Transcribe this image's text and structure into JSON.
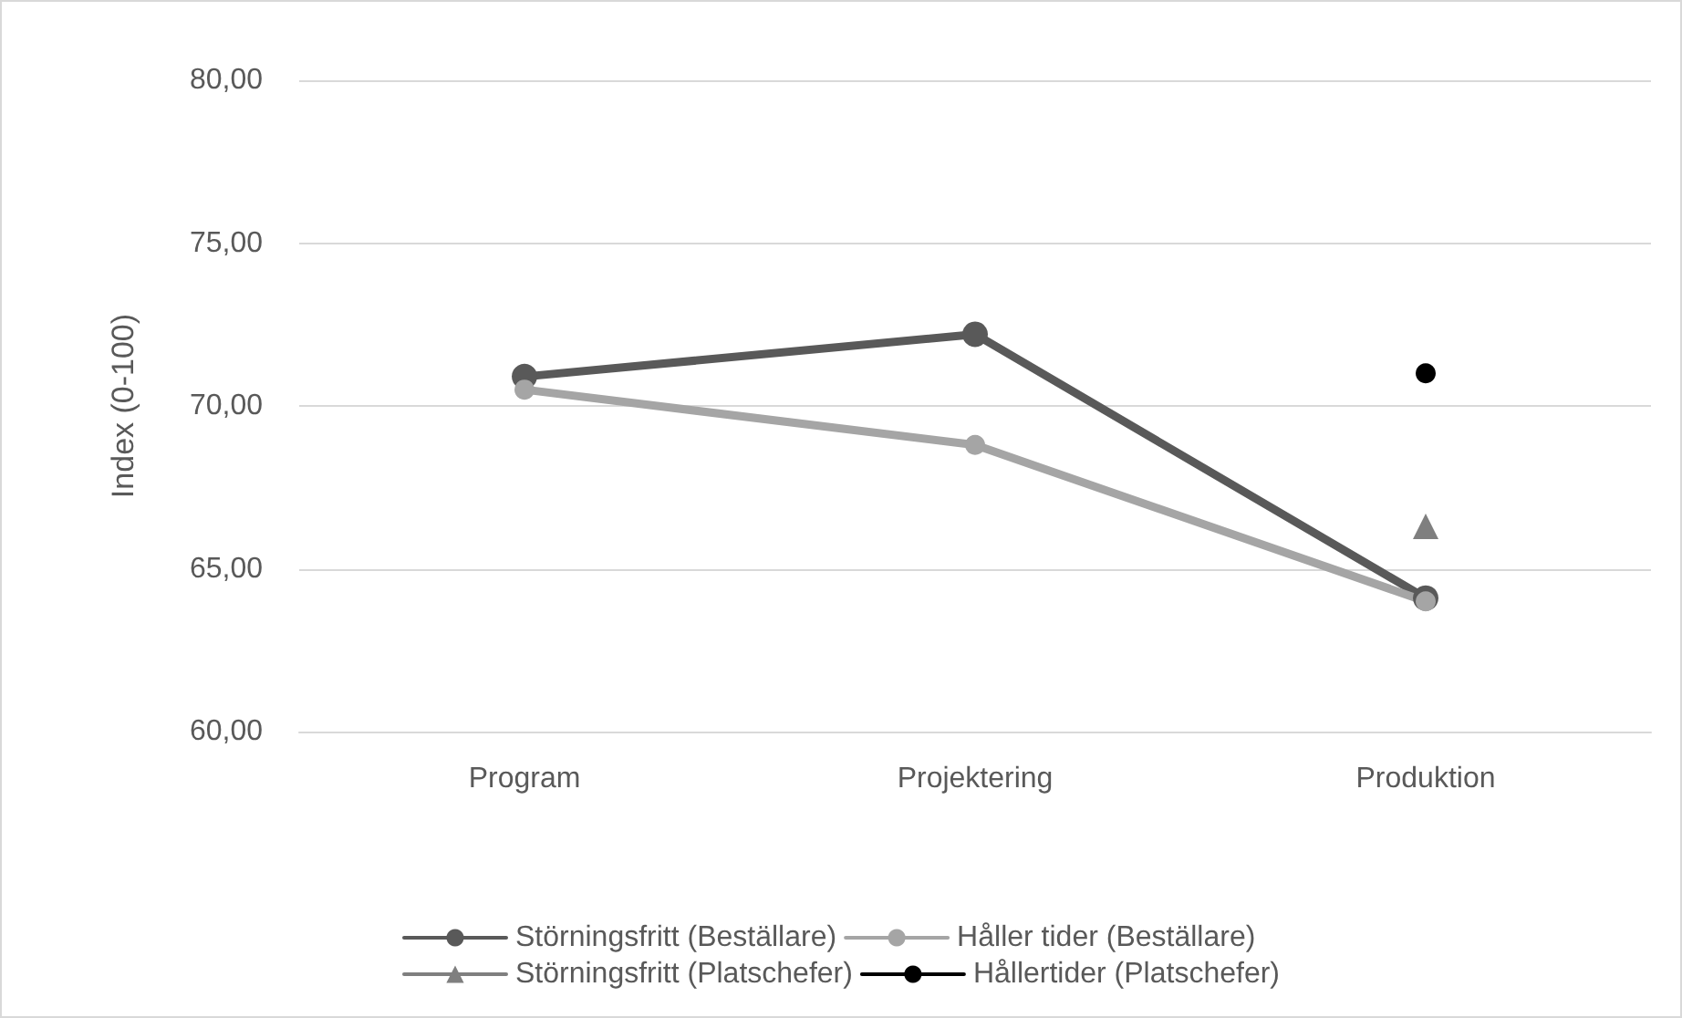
{
  "chart_data": {
    "type": "line",
    "ylabel": "Index (0-100)",
    "categories": [
      "Program",
      "Projektering",
      "Produktion"
    ],
    "series": [
      {
        "name": "Störningsfritt (Beställare)",
        "color": "#595959",
        "marker": "circle",
        "values": [
          70.9,
          72.2,
          64.1
        ]
      },
      {
        "name": "Håller tider (Beställare)",
        "color": "#a5a5a5",
        "marker": "circle",
        "values": [
          70.5,
          68.8,
          64.0
        ]
      },
      {
        "name": "Störningsfritt (Platschefer)",
        "color": "#7f7f7f",
        "marker": "triangle",
        "values": [
          null,
          null,
          66.3
        ]
      },
      {
        "name": "Hållertider (Platschefer)",
        "color": "#000000",
        "marker": "circle",
        "values": [
          null,
          null,
          71.0
        ]
      }
    ],
    "ylim": [
      60,
      80
    ],
    "yticks": [
      {
        "value": 60,
        "label": "60,00"
      },
      {
        "value": 65,
        "label": "65,00"
      },
      {
        "value": 70,
        "label": "70,00"
      },
      {
        "value": 75,
        "label": "75,00"
      },
      {
        "value": 80,
        "label": "80,00"
      }
    ],
    "grid": "y",
    "legend": "bottom",
    "line_style": "solid"
  }
}
